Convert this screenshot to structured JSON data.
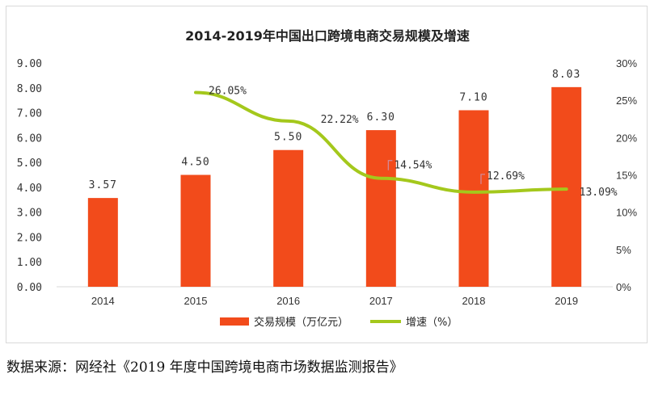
{
  "chart_data": {
    "type": "bar",
    "title": "2014-2019年中国出口跨境电商交易规模及增速",
    "categories": [
      "2014",
      "2015",
      "2016",
      "2017",
      "2018",
      "2019"
    ],
    "series": [
      {
        "name": "交易规模（万亿元）",
        "type": "bar",
        "axis": "left",
        "values": [
          3.57,
          4.5,
          5.5,
          6.3,
          7.1,
          8.03
        ],
        "labels": [
          "3.57",
          "4.50",
          "5.50",
          "6.30",
          "7.10",
          "8.03"
        ],
        "color": "#f24b1b"
      },
      {
        "name": "增速（%）",
        "type": "line",
        "axis": "right",
        "values": [
          null,
          26.05,
          22.22,
          14.54,
          12.69,
          13.09
        ],
        "labels": [
          "",
          "26.05%",
          "22.22%",
          "14.54%",
          "12.69%",
          "13.09%"
        ],
        "color": "#a4c81c"
      }
    ],
    "left_axis": {
      "ylim": [
        0,
        9
      ],
      "ticks": [
        "0.00",
        "1.00",
        "2.00",
        "3.00",
        "4.00",
        "5.00",
        "6.00",
        "7.00",
        "8.00",
        "9.00"
      ]
    },
    "right_axis": {
      "ylim": [
        0,
        30
      ],
      "ticks": [
        "0%",
        "5%",
        "10%",
        "15%",
        "20%",
        "25%",
        "30%"
      ]
    },
    "grid": false,
    "legend_position": "bottom"
  },
  "source_note": "数据来源：网经社《2019 年度中国跨境电商市场数据监测报告》"
}
